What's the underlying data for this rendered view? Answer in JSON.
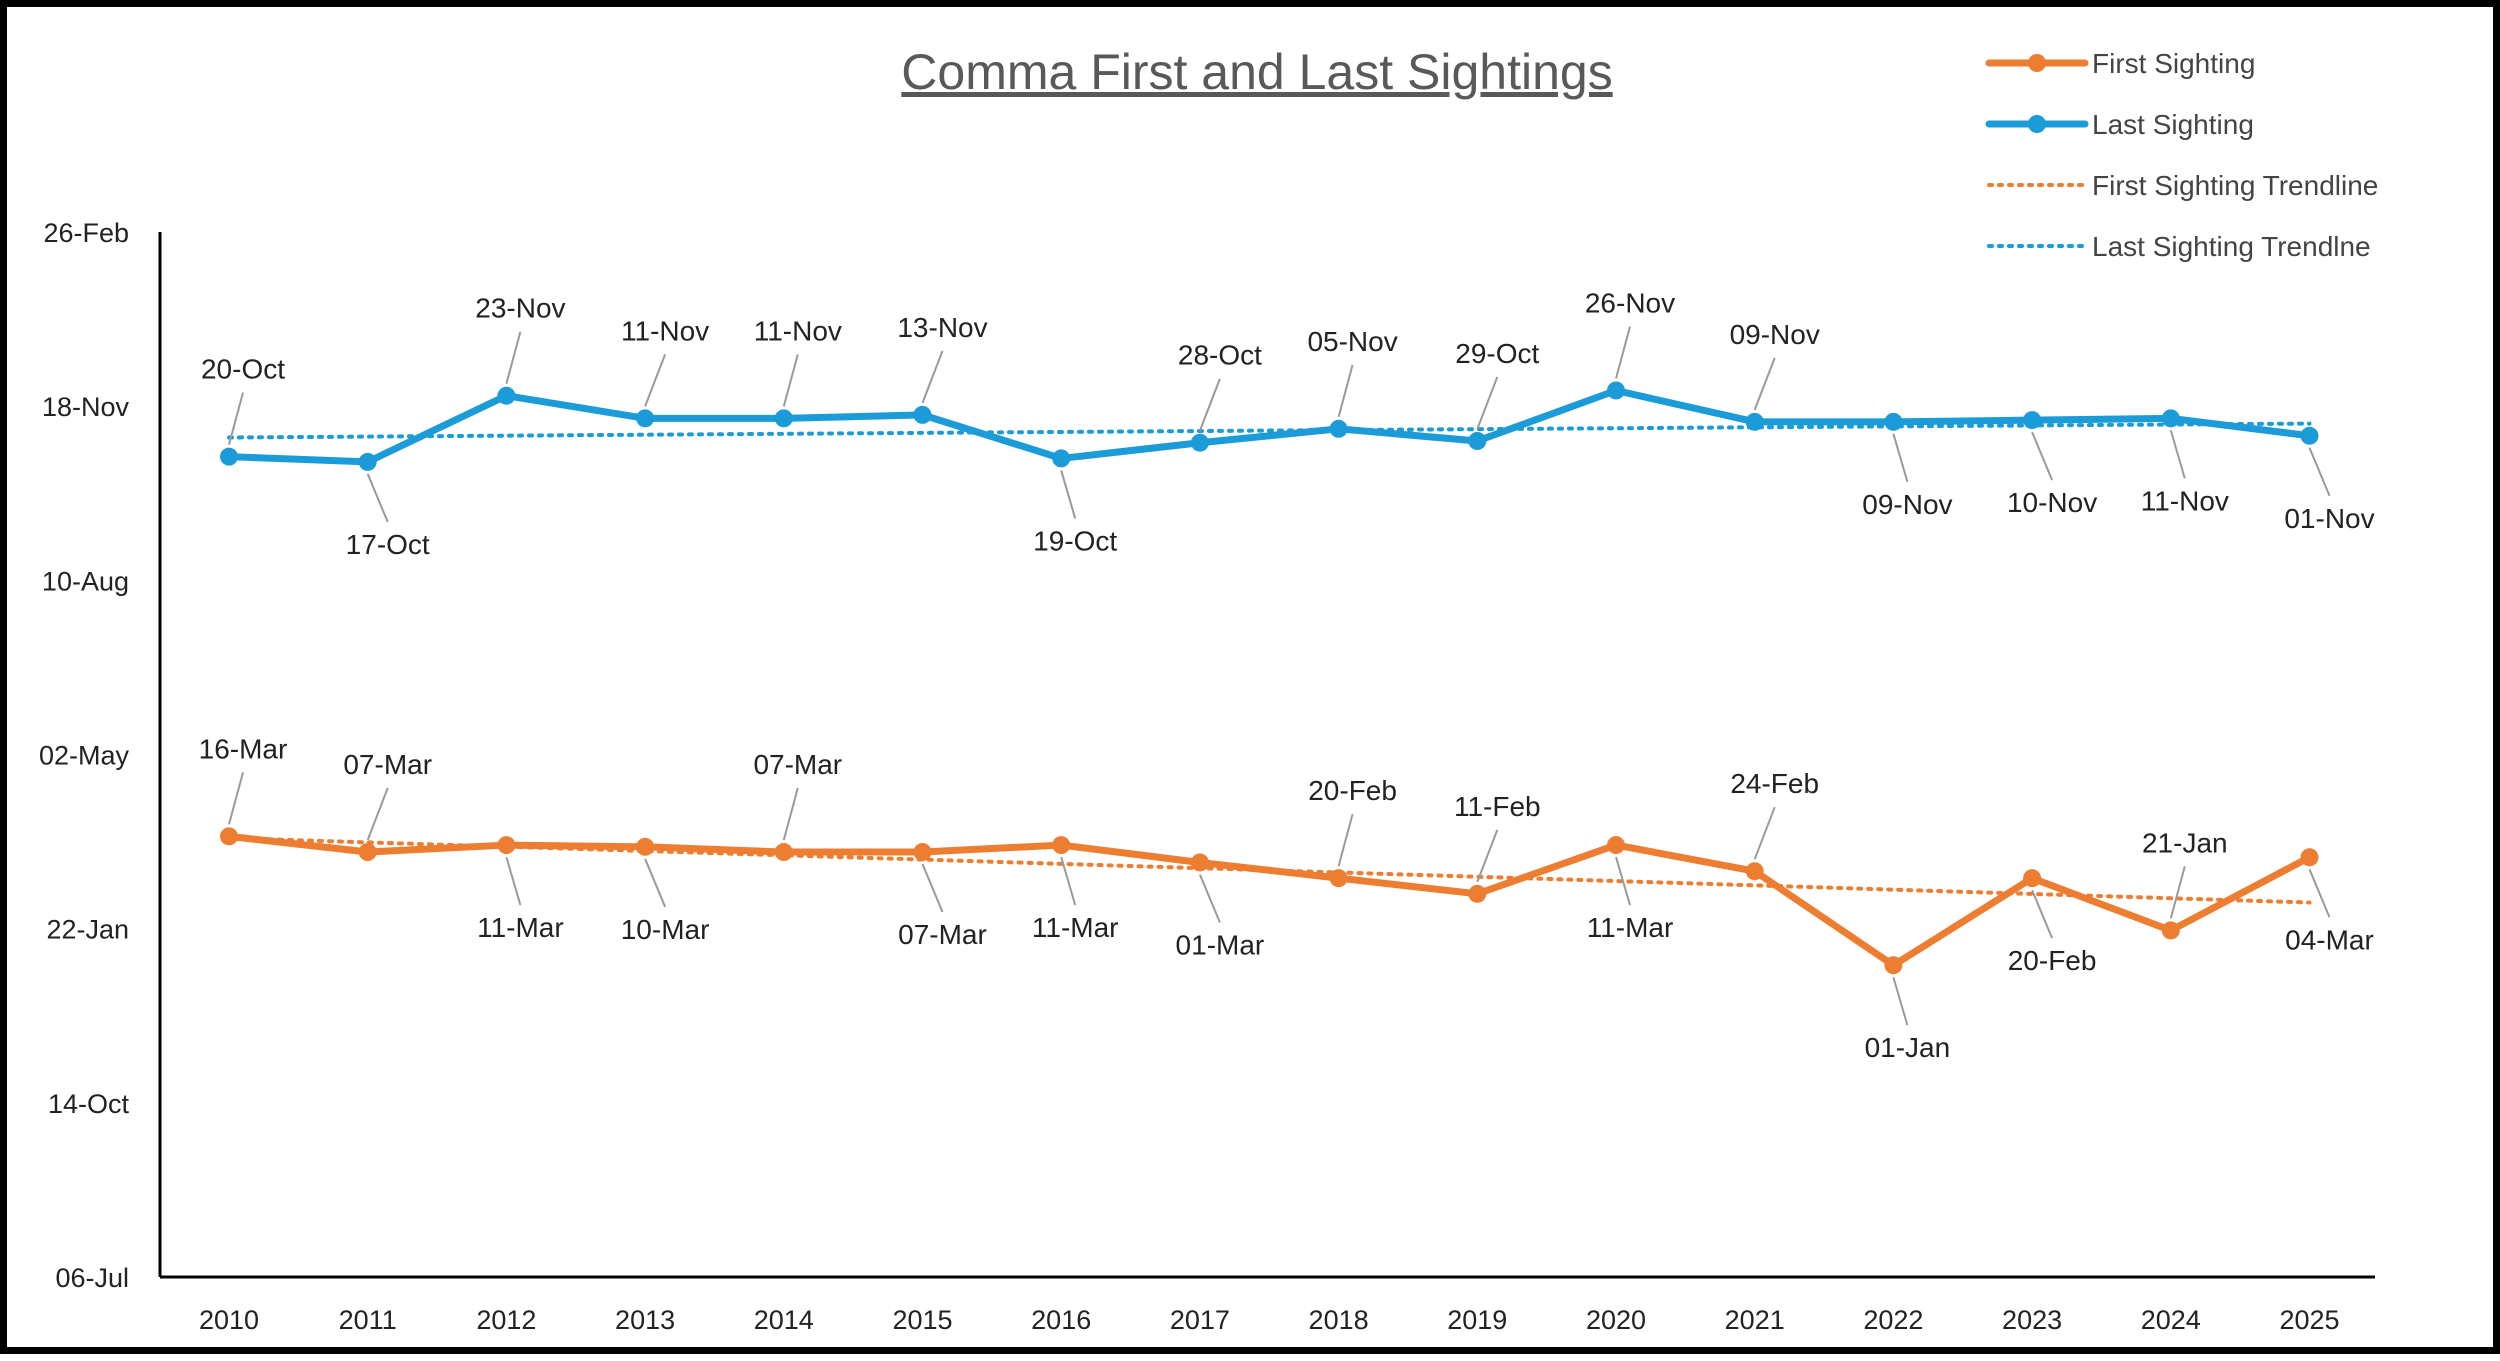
{
  "chart_data": {
    "type": "line",
    "title": "Comma First and Last Sightings",
    "x": [
      "2010",
      "2011",
      "2012",
      "2013",
      "2014",
      "2015",
      "2016",
      "2017",
      "2018",
      "2019",
      "2020",
      "2021",
      "2022",
      "2023",
      "2024",
      "2025"
    ],
    "y_ticks": [
      "26-Feb",
      "18-Nov",
      "10-Aug",
      "02-May",
      "22-Jan",
      "14-Oct",
      "06-Jul"
    ],
    "y_axis_note": "day-of-year scale; 18-Nov ≈ day 322, 02-May ≈ day 122 (100 days per major tick)",
    "ylim": [
      -178,
      422
    ],
    "colors": {
      "first": "#ED7D31",
      "last": "#1B9BD7"
    },
    "series": [
      {
        "name": "First Sighting",
        "key": "first",
        "style": "solid",
        "values": [
          75,
          66,
          70,
          69,
          66,
          66,
          70,
          60,
          51,
          42,
          70,
          55,
          1,
          51,
          21,
          63
        ],
        "labels": [
          "16-Mar",
          "07-Mar",
          "11-Mar",
          "10-Mar",
          "07-Mar",
          "07-Mar",
          "11-Mar",
          "01-Mar",
          "20-Feb",
          "11-Feb",
          "11-Mar",
          "24-Feb",
          "01-Jan",
          "20-Feb",
          "21-Jan",
          "04-Mar"
        ],
        "label_pos": [
          "above",
          "above",
          "below",
          "below",
          "above",
          "below",
          "below",
          "below",
          "above",
          "above",
          "below",
          "above",
          "below",
          "below",
          "above",
          "below"
        ]
      },
      {
        "name": "Last Sighting",
        "key": "last",
        "style": "solid",
        "values": [
          293,
          290,
          328,
          315,
          315,
          317,
          292,
          301,
          309,
          302,
          331,
          313,
          313,
          314,
          315,
          305
        ],
        "labels": [
          "20-Oct",
          "17-Oct",
          "23-Nov",
          "11-Nov",
          "11-Nov",
          "13-Nov",
          "19-Oct",
          "28-Oct",
          "05-Nov",
          "29-Oct",
          "26-Nov",
          "09-Nov",
          "09-Nov",
          "10-Nov",
          "11-Nov",
          "01-Nov"
        ],
        "label_pos": [
          "above",
          "below",
          "above",
          "above",
          "above",
          "above",
          "below",
          "above",
          "above",
          "above",
          "above",
          "above",
          "below",
          "below",
          "below",
          "below"
        ]
      }
    ],
    "trendlines": [
      {
        "name": "First Sighting Trendline",
        "key": "first",
        "start": 74,
        "end": 37
      },
      {
        "name": "Last Sighting Trendlne",
        "key": "last",
        "start": 304,
        "end": 312
      }
    ],
    "legend": {
      "position": "top-right",
      "items": [
        "First Sighting",
        "Last Sighting",
        "First Sighting Trendline",
        "Last Sighting Trendlne"
      ]
    }
  }
}
